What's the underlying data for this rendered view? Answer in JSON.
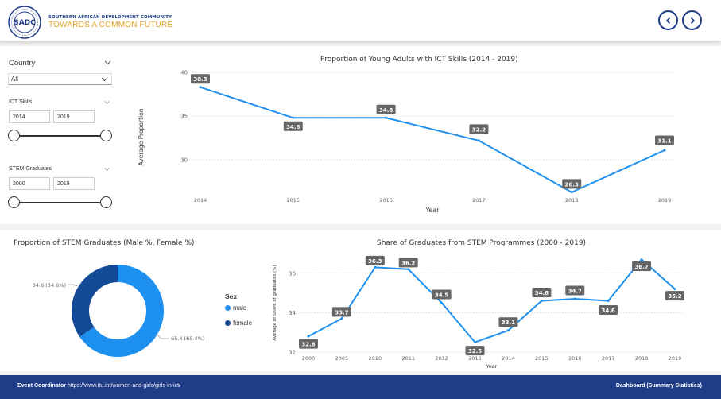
{
  "header": {
    "org_name": "SOUTHERN AFRICAN DEVELOPMENT COMMUNITY",
    "tagline": "TOWARDS A COMMON FUTURE",
    "logo_text": "SADC",
    "nav_prev_icon": "chevron-left-icon",
    "nav_next_icon": "chevron-right-icon",
    "brand_color": "#1f3c88",
    "accent_color": "#e0a526"
  },
  "filters": {
    "country": {
      "label": "Country",
      "value": "All"
    },
    "ict_skills": {
      "label": "ICT Skills",
      "from": "2014",
      "to": "2019"
    },
    "stem_graduates": {
      "label": "STEM Graduates",
      "from": "2000",
      "to": "2019"
    }
  },
  "chart_data": [
    {
      "id": "ict",
      "type": "line",
      "title": "Proportion of Young Adults with ICT Skills (2014 - 2019)",
      "xlabel": "Year",
      "ylabel": "Average Proportion",
      "x": [
        "2014",
        "2015",
        "2016",
        "2017",
        "2018",
        "2019"
      ],
      "values": [
        38.3,
        34.8,
        34.8,
        32.2,
        26.3,
        31.1
      ],
      "data_labels": [
        "38.3",
        "34.8",
        "34.8",
        "32.2",
        "26.3",
        "31.1"
      ],
      "y_ticks": [
        "30",
        "35",
        "40"
      ],
      "ylim": [
        25.2,
        40
      ],
      "grid": true,
      "line_color": "#1e90f0"
    },
    {
      "id": "donut",
      "type": "pie",
      "title": "Proportion of STEM Graduates (Male %, Female %)",
      "legend_title": "Sex",
      "slices": [
        {
          "name": "male",
          "value": 65.4,
          "label": "65.4 (65.4%)",
          "color": "#1e90f0"
        },
        {
          "name": "female",
          "value": 34.6,
          "label": "34.6 (34.6%)",
          "color": "#124a96"
        }
      ],
      "legend_position": "right"
    },
    {
      "id": "stem",
      "type": "line",
      "title": "Share of Graduates from STEM Programmes (2000 - 2019)",
      "xlabel": "Year",
      "ylabel": "Average of Share of graduates (%)",
      "x": [
        "2000",
        "2005",
        "2010",
        "2011",
        "2012",
        "2013",
        "2014",
        "2015",
        "2016",
        "2017",
        "2018",
        "2019"
      ],
      "values": [
        32.8,
        33.7,
        36.3,
        36.2,
        34.5,
        32.5,
        33.1,
        34.6,
        34.7,
        34.6,
        36.7,
        35.2
      ],
      "data_labels": [
        "32.8",
        "33.7",
        "36.3",
        "36.2",
        "34.5",
        "32.5",
        "33.1",
        "34.6",
        "34.7",
        "34.6",
        "36.7",
        "35.2"
      ],
      "y_ticks": [
        "32",
        "34",
        "36"
      ],
      "ylim": [
        32,
        37
      ],
      "grid": true,
      "line_color": "#1e90f0"
    }
  ],
  "footer": {
    "left_bold": "Event Coordinator",
    "left_link": "https://www.itu.int/women-and-girls/girls-in-ict/",
    "right": "Dashboard (Summary Statistics)"
  }
}
